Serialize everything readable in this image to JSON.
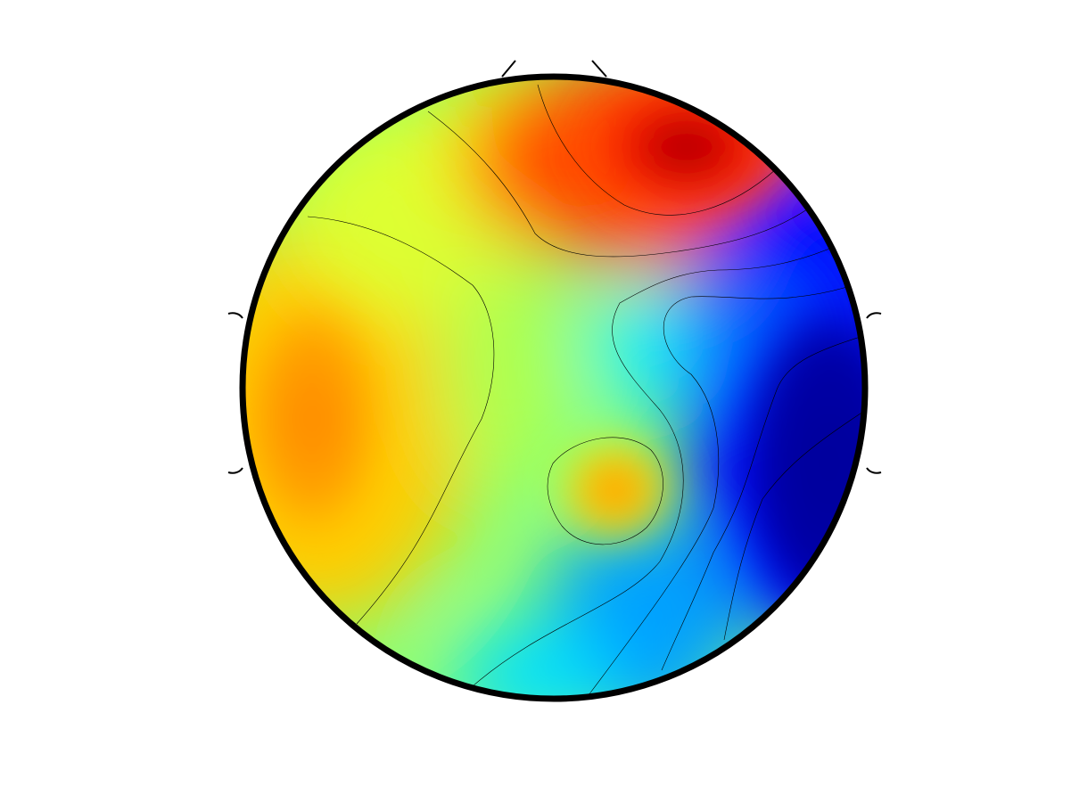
{
  "figure": {
    "type": "scalp topographic map",
    "colormap": "jet",
    "background": "#ffffff",
    "outline_color": "#000000",
    "contour_color": "#000000",
    "colormap_stops": [
      "#00008f",
      "#0000ff",
      "#00ffff",
      "#80ff80",
      "#ffff00",
      "#ff8000",
      "#ff0000",
      "#800000"
    ]
  }
}
